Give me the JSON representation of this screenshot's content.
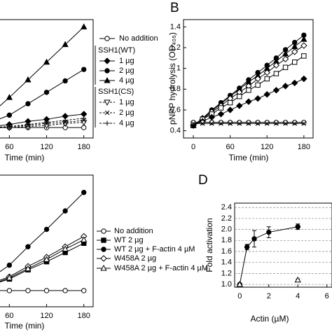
{
  "chart_data": [
    {
      "type": "line",
      "xlabel": "Time (min)",
      "x": [
        0,
        30,
        60,
        90,
        120,
        150,
        180
      ],
      "xlim": [
        -16,
        195
      ],
      "ylim": [
        0.33,
        1.47
      ],
      "xticks": [
        60,
        120,
        180
      ],
      "legend_headings": [
        "SSH1(WT)",
        "SSH1(CS)"
      ],
      "series": [
        {
          "name": "No addition",
          "color": "#000",
          "marker": "circle",
          "filled": false,
          "dashed": false,
          "values": [
            0.43,
            0.43,
            0.43,
            0.43,
            0.43,
            0.43,
            0.43
          ]
        },
        {
          "name": "1 µg",
          "color": "#000",
          "marker": "diamond",
          "filled": true,
          "dashed": false,
          "values": [
            0.42,
            0.44,
            0.46,
            0.49,
            0.51,
            0.54,
            0.56
          ]
        },
        {
          "name": "2 µg",
          "color": "#000",
          "marker": "circle",
          "filled": true,
          "dashed": false,
          "values": [
            0.42,
            0.48,
            0.55,
            0.66,
            0.77,
            0.88,
            0.99
          ]
        },
        {
          "name": "4 µg",
          "color": "#000",
          "marker": "triangle",
          "filled": true,
          "dashed": false,
          "values": [
            0.4,
            0.56,
            0.72,
            0.89,
            1.06,
            1.23,
            1.4
          ]
        },
        {
          "name": "1 µg",
          "color": "#000",
          "marker": "triangle-down",
          "filled": false,
          "dashed": true,
          "values": [
            0.42,
            0.43,
            0.43,
            0.44,
            0.45,
            0.47,
            0.48
          ]
        },
        {
          "name": "2 µg",
          "color": "#000",
          "marker": "cross",
          "filled": false,
          "dashed": true,
          "values": [
            0.42,
            0.43,
            0.44,
            0.45,
            0.47,
            0.48,
            0.5
          ]
        },
        {
          "name": "4 µg",
          "color": "#000",
          "marker": "plus",
          "filled": false,
          "dashed": true,
          "values": [
            0.42,
            0.43,
            0.44,
            0.46,
            0.48,
            0.5,
            0.52
          ]
        }
      ]
    },
    {
      "type": "line",
      "panel_label": "B",
      "xlabel": "Time (min)",
      "ylabel": "pNPP hydrolysis (OD₄₀₅)",
      "x": [
        0,
        15,
        30,
        45,
        60,
        75,
        90,
        105,
        120,
        135,
        150,
        165,
        180
      ],
      "xlim": [
        -16,
        195
      ],
      "ylim": [
        0.33,
        1.47
      ],
      "xticks": [
        0,
        60,
        120,
        180
      ],
      "yticks": [
        {
          "value": 0.4,
          "label": "0.4"
        },
        {
          "value": 0.6,
          "label": "0.6"
        },
        {
          "value": 0.8,
          "label": "0.8"
        },
        {
          "value": 1,
          "label": "1"
        },
        {
          "value": 1.2,
          "label": "1.2"
        },
        {
          "value": 1.4,
          "label": "1.4"
        }
      ],
      "series": [
        {
          "color": "#000",
          "marker": "circle",
          "filled": true,
          "dashed": false,
          "values": [
            0.45,
            0.52,
            0.6,
            0.67,
            0.74,
            0.81,
            0.89,
            0.96,
            1.03,
            1.1,
            1.18,
            1.25,
            1.32
          ]
        },
        {
          "color": "#000",
          "marker": "triangle",
          "filled": true,
          "dashed": false,
          "values": [
            0.45,
            0.52,
            0.59,
            0.66,
            0.73,
            0.8,
            0.87,
            0.93,
            1.0,
            1.07,
            1.14,
            1.21,
            1.28
          ]
        },
        {
          "color": "#000",
          "marker": "diamond",
          "filled": false,
          "dashed": false,
          "values": [
            0.45,
            0.51,
            0.58,
            0.64,
            0.71,
            0.77,
            0.83,
            0.9,
            0.96,
            1.03,
            1.09,
            1.16,
            1.22
          ]
        },
        {
          "color": "#000",
          "marker": "square",
          "filled": false,
          "dashed": false,
          "values": [
            0.45,
            0.51,
            0.56,
            0.62,
            0.67,
            0.73,
            0.79,
            0.84,
            0.9,
            0.95,
            1.01,
            1.06,
            1.12
          ]
        },
        {
          "color": "#000",
          "marker": "diamond",
          "filled": true,
          "dashed": false,
          "values": [
            0.45,
            0.49,
            0.53,
            0.56,
            0.6,
            0.64,
            0.68,
            0.71,
            0.75,
            0.79,
            0.83,
            0.86,
            0.9
          ]
        },
        {
          "color": "#000",
          "marker": "circle",
          "filled": false,
          "dashed": false,
          "values": [
            0.48,
            0.48,
            0.48,
            0.48,
            0.48,
            0.48,
            0.48,
            0.48,
            0.48,
            0.48,
            0.48,
            0.48,
            0.48
          ]
        },
        {
          "color": "#000",
          "marker": "cross",
          "filled": false,
          "dashed": false,
          "values": [
            0.47,
            0.47,
            0.47,
            0.47,
            0.47,
            0.47,
            0.47,
            0.47,
            0.47,
            0.47,
            0.47,
            0.47,
            0.47
          ]
        }
      ]
    },
    {
      "type": "line",
      "xlabel": "Time (min)",
      "x": [
        0,
        30,
        60,
        90,
        120,
        150,
        180
      ],
      "xlim": [
        -16,
        195
      ],
      "ylim": [
        0.33,
        1.47
      ],
      "xticks": [
        60,
        120,
        180
      ],
      "series": [
        {
          "name": "No addition",
          "color": "#000",
          "marker": "circle",
          "filled": false,
          "dashed": false,
          "values": [
            0.47,
            0.47,
            0.47,
            0.47,
            0.47,
            0.47,
            0.47
          ]
        },
        {
          "name": "WT 2 µg",
          "color": "#000",
          "marker": "square",
          "filled": true,
          "dashed": false,
          "values": [
            0.47,
            0.52,
            0.57,
            0.65,
            0.72,
            0.8,
            0.88
          ]
        },
        {
          "name": "WT 2 µg + F-actin 4 µM",
          "color": "#000",
          "marker": "circle",
          "filled": true,
          "dashed": false,
          "values": [
            0.47,
            0.58,
            0.69,
            0.85,
            1.0,
            1.16,
            1.32
          ]
        },
        {
          "name": "W458A 2 µg",
          "color": "#000",
          "marker": "diamond",
          "filled": false,
          "dashed": false,
          "values": [
            0.47,
            0.53,
            0.59,
            0.68,
            0.76,
            0.85,
            0.94
          ]
        },
        {
          "name": "W458A 2 µg + F-actin 4 µM",
          "color": "#000",
          "marker": "triangle",
          "filled": false,
          "dashed": false,
          "values": [
            0.47,
            0.52,
            0.58,
            0.66,
            0.74,
            0.83,
            0.91
          ]
        }
      ]
    },
    {
      "type": "line",
      "panel_label": "D",
      "xlabel": "Actin (µM)",
      "ylabel": "Fold activation",
      "x": [
        0,
        0.5,
        1,
        2,
        4
      ],
      "xlim": [
        -0.35,
        6.35
      ],
      "ylim": [
        0.95,
        2.48
      ],
      "xticks": [
        0,
        2,
        4,
        6
      ],
      "grid": true,
      "yticks": [
        {
          "value": 1,
          "label": "1.0"
        },
        {
          "value": 1.2,
          "label": "1.2"
        },
        {
          "value": 1.4,
          "label": "1.4"
        },
        {
          "value": 1.6,
          "label": "1.6"
        },
        {
          "value": 1.8,
          "label": "1.8"
        },
        {
          "value": 2,
          "label": "2.0"
        },
        {
          "value": 2.2,
          "label": "2.2"
        },
        {
          "value": 2.4,
          "label": "2.4"
        }
      ],
      "series": [
        {
          "color": "#000",
          "marker": "circle",
          "filled": true,
          "dashed": false,
          "values": [
            1.0,
            1.68,
            1.83,
            1.95,
            2.05
          ],
          "errors": [
            null,
            0.05,
            0.15,
            0.1,
            0.05
          ]
        },
        {
          "color": "#000",
          "marker": "triangle",
          "filled": false,
          "dashed": false,
          "values": [
            1.0,
            null,
            null,
            null,
            1.08
          ],
          "errors": [
            null,
            null,
            null,
            null,
            0.02
          ]
        }
      ]
    }
  ]
}
